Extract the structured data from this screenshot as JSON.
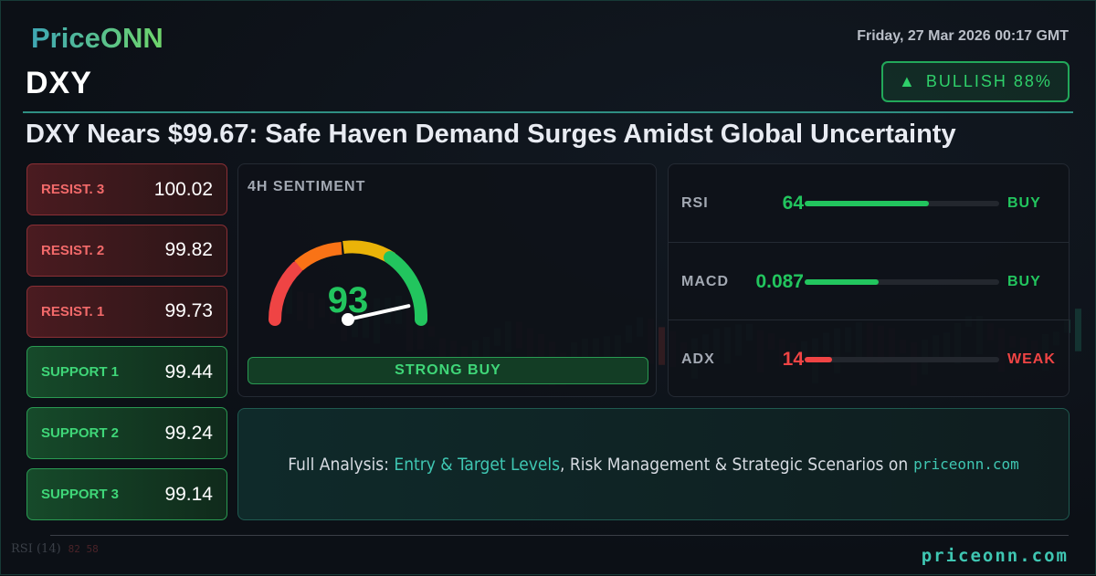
{
  "brand": {
    "logo": "PriceONN",
    "footer_site": "priceonn.com"
  },
  "header": {
    "date": "Friday, 27 Mar 2026 00:17 GMT",
    "ticker": "DXY",
    "headline": "DXY Nears $99.67: Safe Haven Demand Surges Amidst Global Uncertainty"
  },
  "badge": {
    "icon": "triangle-up-icon",
    "label": "BULLISH 88%",
    "color": "#22c55e"
  },
  "levels": [
    {
      "label": "RESIST. 3",
      "value": "100.02",
      "type": "resistance"
    },
    {
      "label": "RESIST. 2",
      "value": "99.82",
      "type": "resistance"
    },
    {
      "label": "RESIST. 1",
      "value": "99.73",
      "type": "resistance"
    },
    {
      "label": "SUPPORT 1",
      "value": "99.44",
      "type": "support"
    },
    {
      "label": "SUPPORT 2",
      "value": "99.24",
      "type": "support"
    },
    {
      "label": "SUPPORT 3",
      "value": "99.14",
      "type": "support"
    }
  ],
  "sentiment": {
    "title": "4H SENTIMENT",
    "score": "93",
    "score_value": 93,
    "verdict": "STRONG BUY"
  },
  "indicators": [
    {
      "name": "RSI",
      "value": "64",
      "fill_pct": 64,
      "signal": "BUY",
      "color": "#22c55e"
    },
    {
      "name": "MACD",
      "value": "0.087",
      "fill_pct": 38,
      "signal": "BUY",
      "color": "#22c55e"
    },
    {
      "name": "ADX",
      "value": "14",
      "fill_pct": 14,
      "signal": "WEAK",
      "color": "#ef4444"
    }
  ],
  "cta": {
    "prefix": "Full Analysis: ",
    "highlight": "Entry & Target Levels",
    "middle": ", Risk Management & Strategic Scenarios on",
    "site": "priceonn.com"
  },
  "background": {
    "rsi_label": "RSI",
    "rsi_period": "(14)",
    "rsi_values": "82 58"
  }
}
